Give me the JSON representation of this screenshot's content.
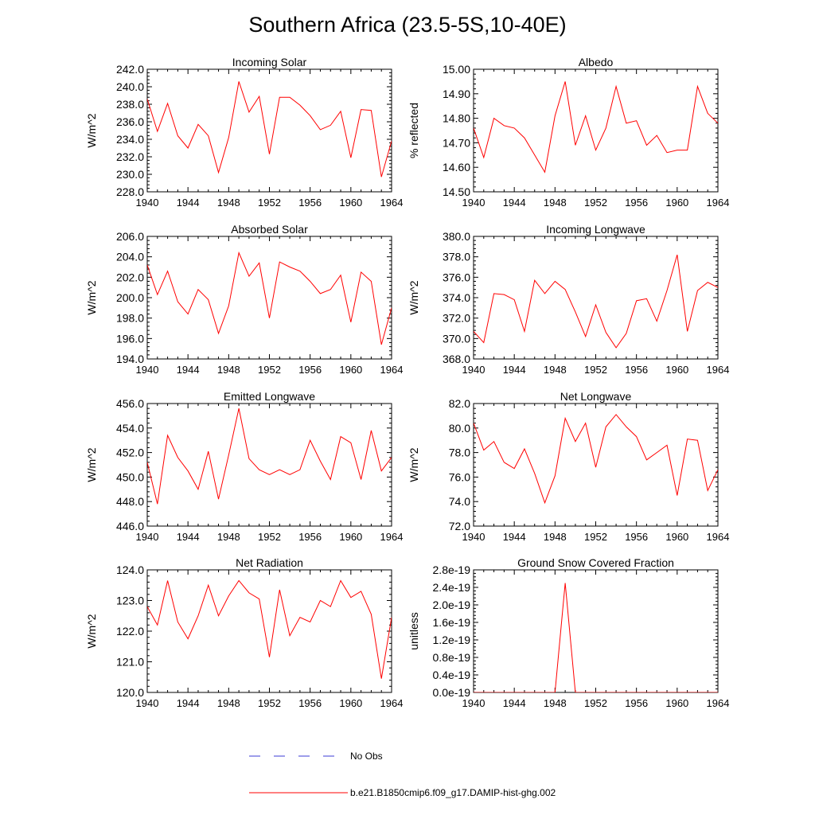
{
  "page": {
    "title": "Southern Africa (23.5-5S,10-40E)",
    "series_color": "#ff0000",
    "obs_color": "#3b3bd6"
  },
  "legend": {
    "placement": "bottom-center",
    "obs_label": "No Obs",
    "model_label": "b.e21.B1850cmip6.f09_g17.DAMIP-hist-ghg.002"
  },
  "chart_data": [
    {
      "type": "line",
      "title": "Incoming Solar",
      "ylabel": "W/m^2",
      "xlim": [
        1940,
        1964
      ],
      "ylim": [
        228,
        242
      ],
      "yticks": [
        "228.0",
        "230.0",
        "232.0",
        "234.0",
        "236.0",
        "238.0",
        "240.0",
        "242.0"
      ],
      "xticks": [
        "1940",
        "1944",
        "1948",
        "1952",
        "1956",
        "1960",
        "1964"
      ],
      "x": [
        1940,
        1941,
        1942,
        1943,
        1944,
        1945,
        1946,
        1947,
        1948,
        1949,
        1950,
        1951,
        1952,
        1953,
        1954,
        1955,
        1956,
        1957,
        1958,
        1959,
        1960,
        1961,
        1962,
        1963,
        1964
      ],
      "values": [
        238.6,
        234.9,
        238.1,
        234.4,
        233.0,
        235.7,
        234.4,
        230.2,
        234.2,
        240.6,
        237.1,
        238.9,
        232.3,
        238.8,
        238.8,
        237.9,
        236.7,
        235.1,
        235.6,
        237.2,
        231.9,
        237.4,
        237.3,
        229.7,
        233.8
      ]
    },
    {
      "type": "line",
      "title": "Albedo",
      "ylabel": "% reflected",
      "xlim": [
        1940,
        1964
      ],
      "ylim": [
        14.5,
        15.0
      ],
      "yticks": [
        "14.50",
        "14.60",
        "14.70",
        "14.80",
        "14.90",
        "15.00"
      ],
      "xticks": [
        "1940",
        "1944",
        "1948",
        "1952",
        "1956",
        "1960",
        "1964"
      ],
      "x": [
        1940,
        1941,
        1942,
        1943,
        1944,
        1945,
        1946,
        1947,
        1948,
        1949,
        1950,
        1951,
        1952,
        1953,
        1954,
        1955,
        1956,
        1957,
        1958,
        1959,
        1960,
        1961,
        1962,
        1963,
        1964
      ],
      "values": [
        14.76,
        14.64,
        14.8,
        14.77,
        14.76,
        14.72,
        14.65,
        14.58,
        14.81,
        14.95,
        14.69,
        14.81,
        14.67,
        14.76,
        14.93,
        14.78,
        14.79,
        14.69,
        14.73,
        14.66,
        14.67,
        14.67,
        14.93,
        14.82,
        14.78
      ]
    },
    {
      "type": "line",
      "title": "Absorbed Solar",
      "ylabel": "W/m^2",
      "xlim": [
        1940,
        1964
      ],
      "ylim": [
        194,
        206
      ],
      "yticks": [
        "194.0",
        "196.0",
        "198.0",
        "200.0",
        "202.0",
        "204.0",
        "206.0"
      ],
      "xticks": [
        "1940",
        "1944",
        "1948",
        "1952",
        "1956",
        "1960",
        "1964"
      ],
      "x": [
        1940,
        1941,
        1942,
        1943,
        1944,
        1945,
        1946,
        1947,
        1948,
        1949,
        1950,
        1951,
        1952,
        1953,
        1954,
        1955,
        1956,
        1957,
        1958,
        1959,
        1960,
        1961,
        1962,
        1963,
        1964
      ],
      "values": [
        203.2,
        200.3,
        202.6,
        199.6,
        198.4,
        200.8,
        199.8,
        196.5,
        199.2,
        204.4,
        202.1,
        203.4,
        198.0,
        203.5,
        203.0,
        202.6,
        201.6,
        200.4,
        200.8,
        202.2,
        197.6,
        202.5,
        201.6,
        195.4,
        199.0
      ]
    },
    {
      "type": "line",
      "title": "Incoming Longwave",
      "ylabel": "W/m^2",
      "xlim": [
        1940,
        1964
      ],
      "ylim": [
        368,
        380
      ],
      "yticks": [
        "368.0",
        "370.0",
        "372.0",
        "374.0",
        "376.0",
        "378.0",
        "380.0"
      ],
      "xticks": [
        "1940",
        "1944",
        "1948",
        "1952",
        "1956",
        "1960",
        "1964"
      ],
      "x": [
        1940,
        1941,
        1942,
        1943,
        1944,
        1945,
        1946,
        1947,
        1948,
        1949,
        1950,
        1951,
        1952,
        1953,
        1954,
        1955,
        1956,
        1957,
        1958,
        1959,
        1960,
        1961,
        1962,
        1963,
        1964
      ],
      "values": [
        370.7,
        369.6,
        374.4,
        374.3,
        373.8,
        370.7,
        375.7,
        374.4,
        375.6,
        374.8,
        372.6,
        370.2,
        373.3,
        370.6,
        369.1,
        370.5,
        373.7,
        373.9,
        371.7,
        374.7,
        378.2,
        370.7,
        374.7,
        375.5,
        375.0
      ]
    },
    {
      "type": "line",
      "title": "Emitted Longwave",
      "ylabel": "W/m^2",
      "xlim": [
        1940,
        1964
      ],
      "ylim": [
        446,
        456
      ],
      "yticks": [
        "446.0",
        "448.0",
        "450.0",
        "452.0",
        "454.0",
        "456.0"
      ],
      "xticks": [
        "1940",
        "1944",
        "1948",
        "1952",
        "1956",
        "1960",
        "1964"
      ],
      "x": [
        1940,
        1941,
        1942,
        1943,
        1944,
        1945,
        1946,
        1947,
        1948,
        1949,
        1950,
        1951,
        1952,
        1953,
        1954,
        1955,
        1956,
        1957,
        1958,
        1959,
        1960,
        1961,
        1962,
        1963,
        1964
      ],
      "values": [
        451.2,
        447.8,
        453.4,
        451.6,
        450.5,
        449.0,
        452.1,
        448.2,
        451.8,
        455.6,
        451.5,
        450.6,
        450.2,
        450.6,
        450.2,
        450.6,
        453.0,
        451.3,
        449.8,
        453.3,
        452.8,
        449.8,
        453.8,
        450.5,
        451.6
      ]
    },
    {
      "type": "line",
      "title": "Net Longwave",
      "ylabel": "W/m^2",
      "xlim": [
        1940,
        1964
      ],
      "ylim": [
        72,
        82
      ],
      "yticks": [
        "72.0",
        "74.0",
        "76.0",
        "78.0",
        "80.0",
        "82.0"
      ],
      "xticks": [
        "1940",
        "1944",
        "1948",
        "1952",
        "1956",
        "1960",
        "1964"
      ],
      "x": [
        1940,
        1941,
        1942,
        1943,
        1944,
        1945,
        1946,
        1947,
        1948,
        1949,
        1950,
        1951,
        1952,
        1953,
        1954,
        1955,
        1956,
        1957,
        1958,
        1959,
        1960,
        1961,
        1962,
        1963,
        1964
      ],
      "values": [
        80.4,
        78.2,
        78.9,
        77.2,
        76.7,
        78.3,
        76.3,
        73.9,
        76.1,
        80.8,
        78.9,
        80.4,
        76.8,
        80.1,
        81.1,
        80.1,
        79.3,
        77.4,
        78.0,
        78.6,
        74.5,
        79.1,
        79.0,
        74.9,
        76.6
      ]
    },
    {
      "type": "line",
      "title": "Net Radiation",
      "ylabel": "W/m^2",
      "xlim": [
        1940,
        1964
      ],
      "ylim": [
        120,
        124
      ],
      "yticks": [
        "120.0",
        "121.0",
        "122.0",
        "123.0",
        "124.0"
      ],
      "xticks": [
        "1940",
        "1944",
        "1948",
        "1952",
        "1956",
        "1960",
        "1964"
      ],
      "x": [
        1940,
        1941,
        1942,
        1943,
        1944,
        1945,
        1946,
        1947,
        1948,
        1949,
        1950,
        1951,
        1952,
        1953,
        1954,
        1955,
        1956,
        1957,
        1958,
        1959,
        1960,
        1961,
        1962,
        1963,
        1964
      ],
      "values": [
        122.8,
        122.2,
        123.65,
        122.3,
        121.75,
        122.5,
        123.5,
        122.5,
        123.15,
        123.65,
        123.25,
        123.05,
        121.15,
        123.35,
        121.85,
        122.45,
        122.3,
        123.0,
        122.8,
        123.65,
        123.1,
        123.3,
        122.55,
        120.45,
        122.45
      ]
    },
    {
      "type": "line",
      "title": "Ground Snow Covered Fraction",
      "ylabel": "unitless",
      "xlim": [
        1940,
        1964
      ],
      "ylim": [
        0,
        2.8e-19
      ],
      "yticks": [
        "0.0e-19",
        "0.4e-19",
        "0.8e-19",
        "1.2e-19",
        "1.6e-19",
        "2.0e-19",
        "2.4e-19",
        "2.8e-19"
      ],
      "xticks": [
        "1940",
        "1944",
        "1948",
        "1952",
        "1956",
        "1960",
        "1964"
      ],
      "x": [
        1940,
        1941,
        1942,
        1943,
        1944,
        1945,
        1946,
        1947,
        1948,
        1949,
        1950,
        1951,
        1952,
        1953,
        1954,
        1955,
        1956,
        1957,
        1958,
        1959,
        1960,
        1961,
        1962,
        1963,
        1964
      ],
      "values": [
        0,
        0,
        0,
        0,
        0,
        0,
        0,
        0,
        0,
        2.5e-19,
        0,
        0,
        0,
        0,
        0,
        0,
        0,
        0,
        0,
        0,
        0,
        0,
        0,
        0,
        0
      ]
    }
  ]
}
